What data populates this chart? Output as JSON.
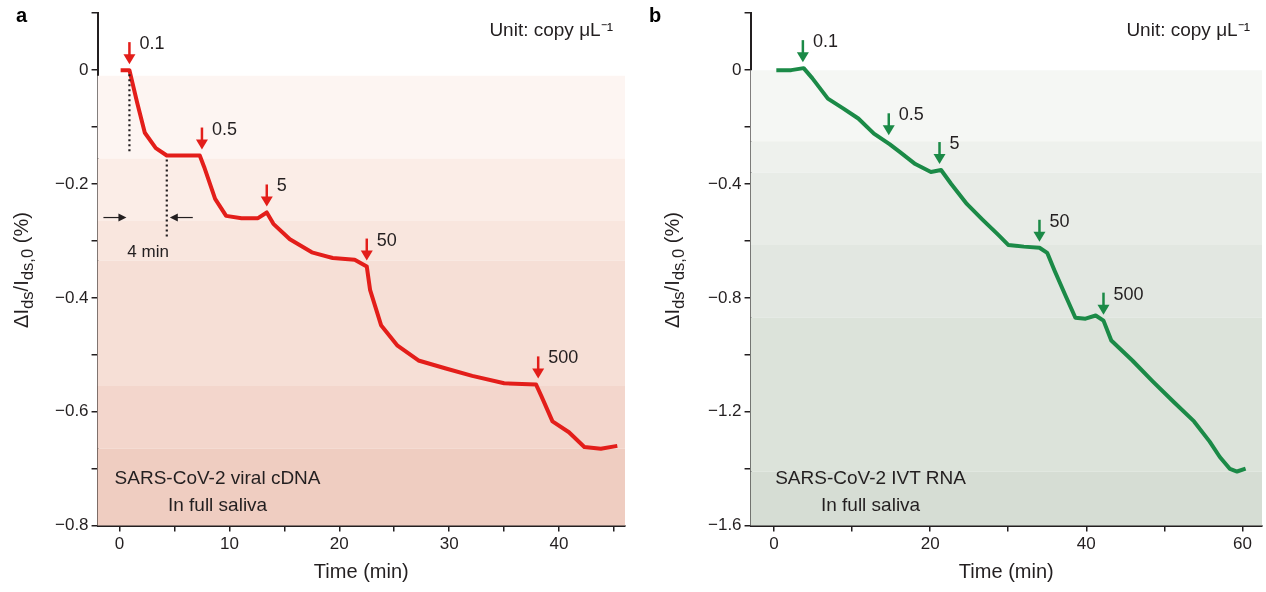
{
  "chart_data": [
    {
      "type": "line",
      "title": "a",
      "xlabel": "Time (min)",
      "ylabel": "ΔI$_{ds}$/I$_{ds,0}$ (%)",
      "color": "#e31e1a",
      "x": [
        0.1,
        0.9,
        1.6,
        2.3,
        3.3,
        4.3,
        5.8,
        7.3,
        7.7,
        8.7,
        9.7,
        11.1,
        12.6,
        13.4,
        14.0,
        15.5,
        17.5,
        19.4,
        21.4,
        22.5,
        22.8,
        23.8,
        25.3,
        27.2,
        29.7,
        32.1,
        35.0,
        37.9,
        38.4,
        39.4,
        40.9,
        42.3,
        43.8,
        45.3
      ],
      "values": [
        0,
        0,
        -0.057,
        -0.11,
        -0.137,
        -0.15,
        -0.15,
        -0.15,
        -0.17,
        -0.226,
        -0.256,
        -0.26,
        -0.26,
        -0.25,
        -0.27,
        -0.297,
        -0.32,
        -0.33,
        -0.333,
        -0.345,
        -0.386,
        -0.448,
        -0.484,
        -0.51,
        -0.524,
        -0.537,
        -0.55,
        -0.552,
        -0.573,
        -0.617,
        -0.636,
        -0.662,
        -0.665,
        -0.66
      ],
      "xlim": [
        -2,
        46
      ],
      "ylim": [
        -0.8,
        0.1
      ],
      "xticks": [
        0,
        {
          "value": 5,
          "label": null
        },
        10,
        {
          "value": 15,
          "label": null
        },
        20,
        {
          "value": 25,
          "label": null
        },
        30,
        {
          "value": 35,
          "label": null
        },
        40,
        {
          "value": 45,
          "label": null
        }
      ],
      "yticks": [
        -0.8,
        {
          "value": -0.7,
          "label": null
        },
        -0.6,
        {
          "value": -0.5,
          "label": null
        },
        -0.4,
        {
          "value": -0.3,
          "label": null
        },
        -0.2,
        {
          "value": -0.1,
          "label": null
        },
        0,
        {
          "value": 0.1,
          "label": null
        }
      ],
      "bands": [
        {
          "axis": "y",
          "from": -0.01,
          "to": -0.155,
          "color": "#fdf5f2"
        },
        {
          "axis": "y",
          "from": -0.155,
          "to": -0.265,
          "color": "#fbede7"
        },
        {
          "axis": "y",
          "from": -0.265,
          "to": -0.335,
          "color": "#f9e6de"
        },
        {
          "axis": "y",
          "from": -0.335,
          "to": -0.555,
          "color": "#f6dfd6"
        },
        {
          "axis": "y",
          "from": -0.555,
          "to": -0.665,
          "color": "#f3d6cc"
        },
        {
          "axis": "y",
          "from": -0.665,
          "to": -0.8,
          "color": "#efcdc1"
        }
      ],
      "ref_lines": [
        {
          "axis": "x",
          "value": 0.9,
          "line_style": "dotted"
        },
        {
          "axis": "x",
          "value": 4.3,
          "line_style": "dotted",
          "label": "4 min"
        }
      ],
      "annotations": [
        "Unit: copy μL⁻¹",
        "SARS-CoV-2 viral cDNA",
        "In full saliva",
        {
          "text": "0.1",
          "x": 0.9,
          "y": 0
        },
        {
          "text": "0.5",
          "x": 7.5,
          "y": -0.15
        },
        {
          "text": "5",
          "x": 13.4,
          "y": -0.25
        },
        {
          "text": "50",
          "x": 22.5,
          "y": -0.345
        },
        {
          "text": "500",
          "x": 38.1,
          "y": -0.552
        }
      ]
    },
    {
      "type": "line",
      "title": "b",
      "xlabel": "Time (min)",
      "ylabel": "ΔI$_{ds}$/I$_{ds,0}$ (%)",
      "color": "#1b8a47",
      "x": [
        0.3,
        2.2,
        3.8,
        4.9,
        6.9,
        8.9,
        10.8,
        12.8,
        14.8,
        16.1,
        18.1,
        20.1,
        21.4,
        22.7,
        24.7,
        26.7,
        28.7,
        30.0,
        32.0,
        34.0,
        35.0,
        35.9,
        37.3,
        38.6,
        39.9,
        41.2,
        42.2,
        43.2,
        45.9,
        48.5,
        51.1,
        53.8,
        55.8,
        57.1,
        58.4,
        59.3,
        60.4
      ],
      "values": [
        0,
        0,
        0.007,
        -0.028,
        -0.1,
        -0.135,
        -0.17,
        -0.223,
        -0.26,
        -0.287,
        -0.33,
        -0.358,
        -0.351,
        -0.4,
        -0.47,
        -0.525,
        -0.578,
        -0.614,
        -0.62,
        -0.624,
        -0.642,
        -0.702,
        -0.79,
        -0.87,
        -0.873,
        -0.862,
        -0.88,
        -0.95,
        -1.02,
        -1.093,
        -1.163,
        -1.234,
        -1.305,
        -1.359,
        -1.401,
        -1.41,
        -1.4
      ],
      "xlim": [
        -3,
        62.5
      ],
      "ylim": [
        -1.6,
        0.2
      ],
      "xticks": [
        0,
        {
          "value": 10,
          "label": null
        },
        20,
        {
          "value": 30,
          "label": null
        },
        40,
        {
          "value": 50,
          "label": null
        },
        60
      ],
      "yticks": [
        -1.6,
        {
          "value": -1.4,
          "label": null
        },
        -1.2,
        {
          "value": -1.0,
          "label": null
        },
        -0.8,
        {
          "value": -0.6,
          "label": null
        },
        -0.4,
        {
          "value": -0.2,
          "label": null
        },
        0,
        {
          "value": 0.2,
          "label": null
        }
      ],
      "bands": [
        {
          "axis": "y",
          "from": 0,
          "to": -0.25,
          "color": "#f5f7f4"
        },
        {
          "axis": "y",
          "from": -0.25,
          "to": -0.36,
          "color": "#eef1ed"
        },
        {
          "axis": "y",
          "from": -0.36,
          "to": -0.614,
          "color": "#e8ece7"
        },
        {
          "axis": "y",
          "from": -0.614,
          "to": -0.87,
          "color": "#e2e7e1"
        },
        {
          "axis": "y",
          "from": -0.87,
          "to": -1.41,
          "color": "#dce3da"
        },
        {
          "axis": "y",
          "from": -1.41,
          "to": -1.6,
          "color": "#d6ddd4"
        }
      ],
      "annotations": [
        "Unit: copy μL⁻¹",
        "SARS-CoV-2 IVT RNA",
        "In full saliva",
        {
          "text": "0.1",
          "x": 3.7,
          "y": 0.007
        },
        {
          "text": "0.5",
          "x": 14.7,
          "y": -0.25
        },
        {
          "text": "5",
          "x": 21.2,
          "y": -0.351
        },
        {
          "text": "50",
          "x": 34.0,
          "y": -0.624
        },
        {
          "text": "500",
          "x": 42.2,
          "y": -0.88
        }
      ]
    }
  ]
}
